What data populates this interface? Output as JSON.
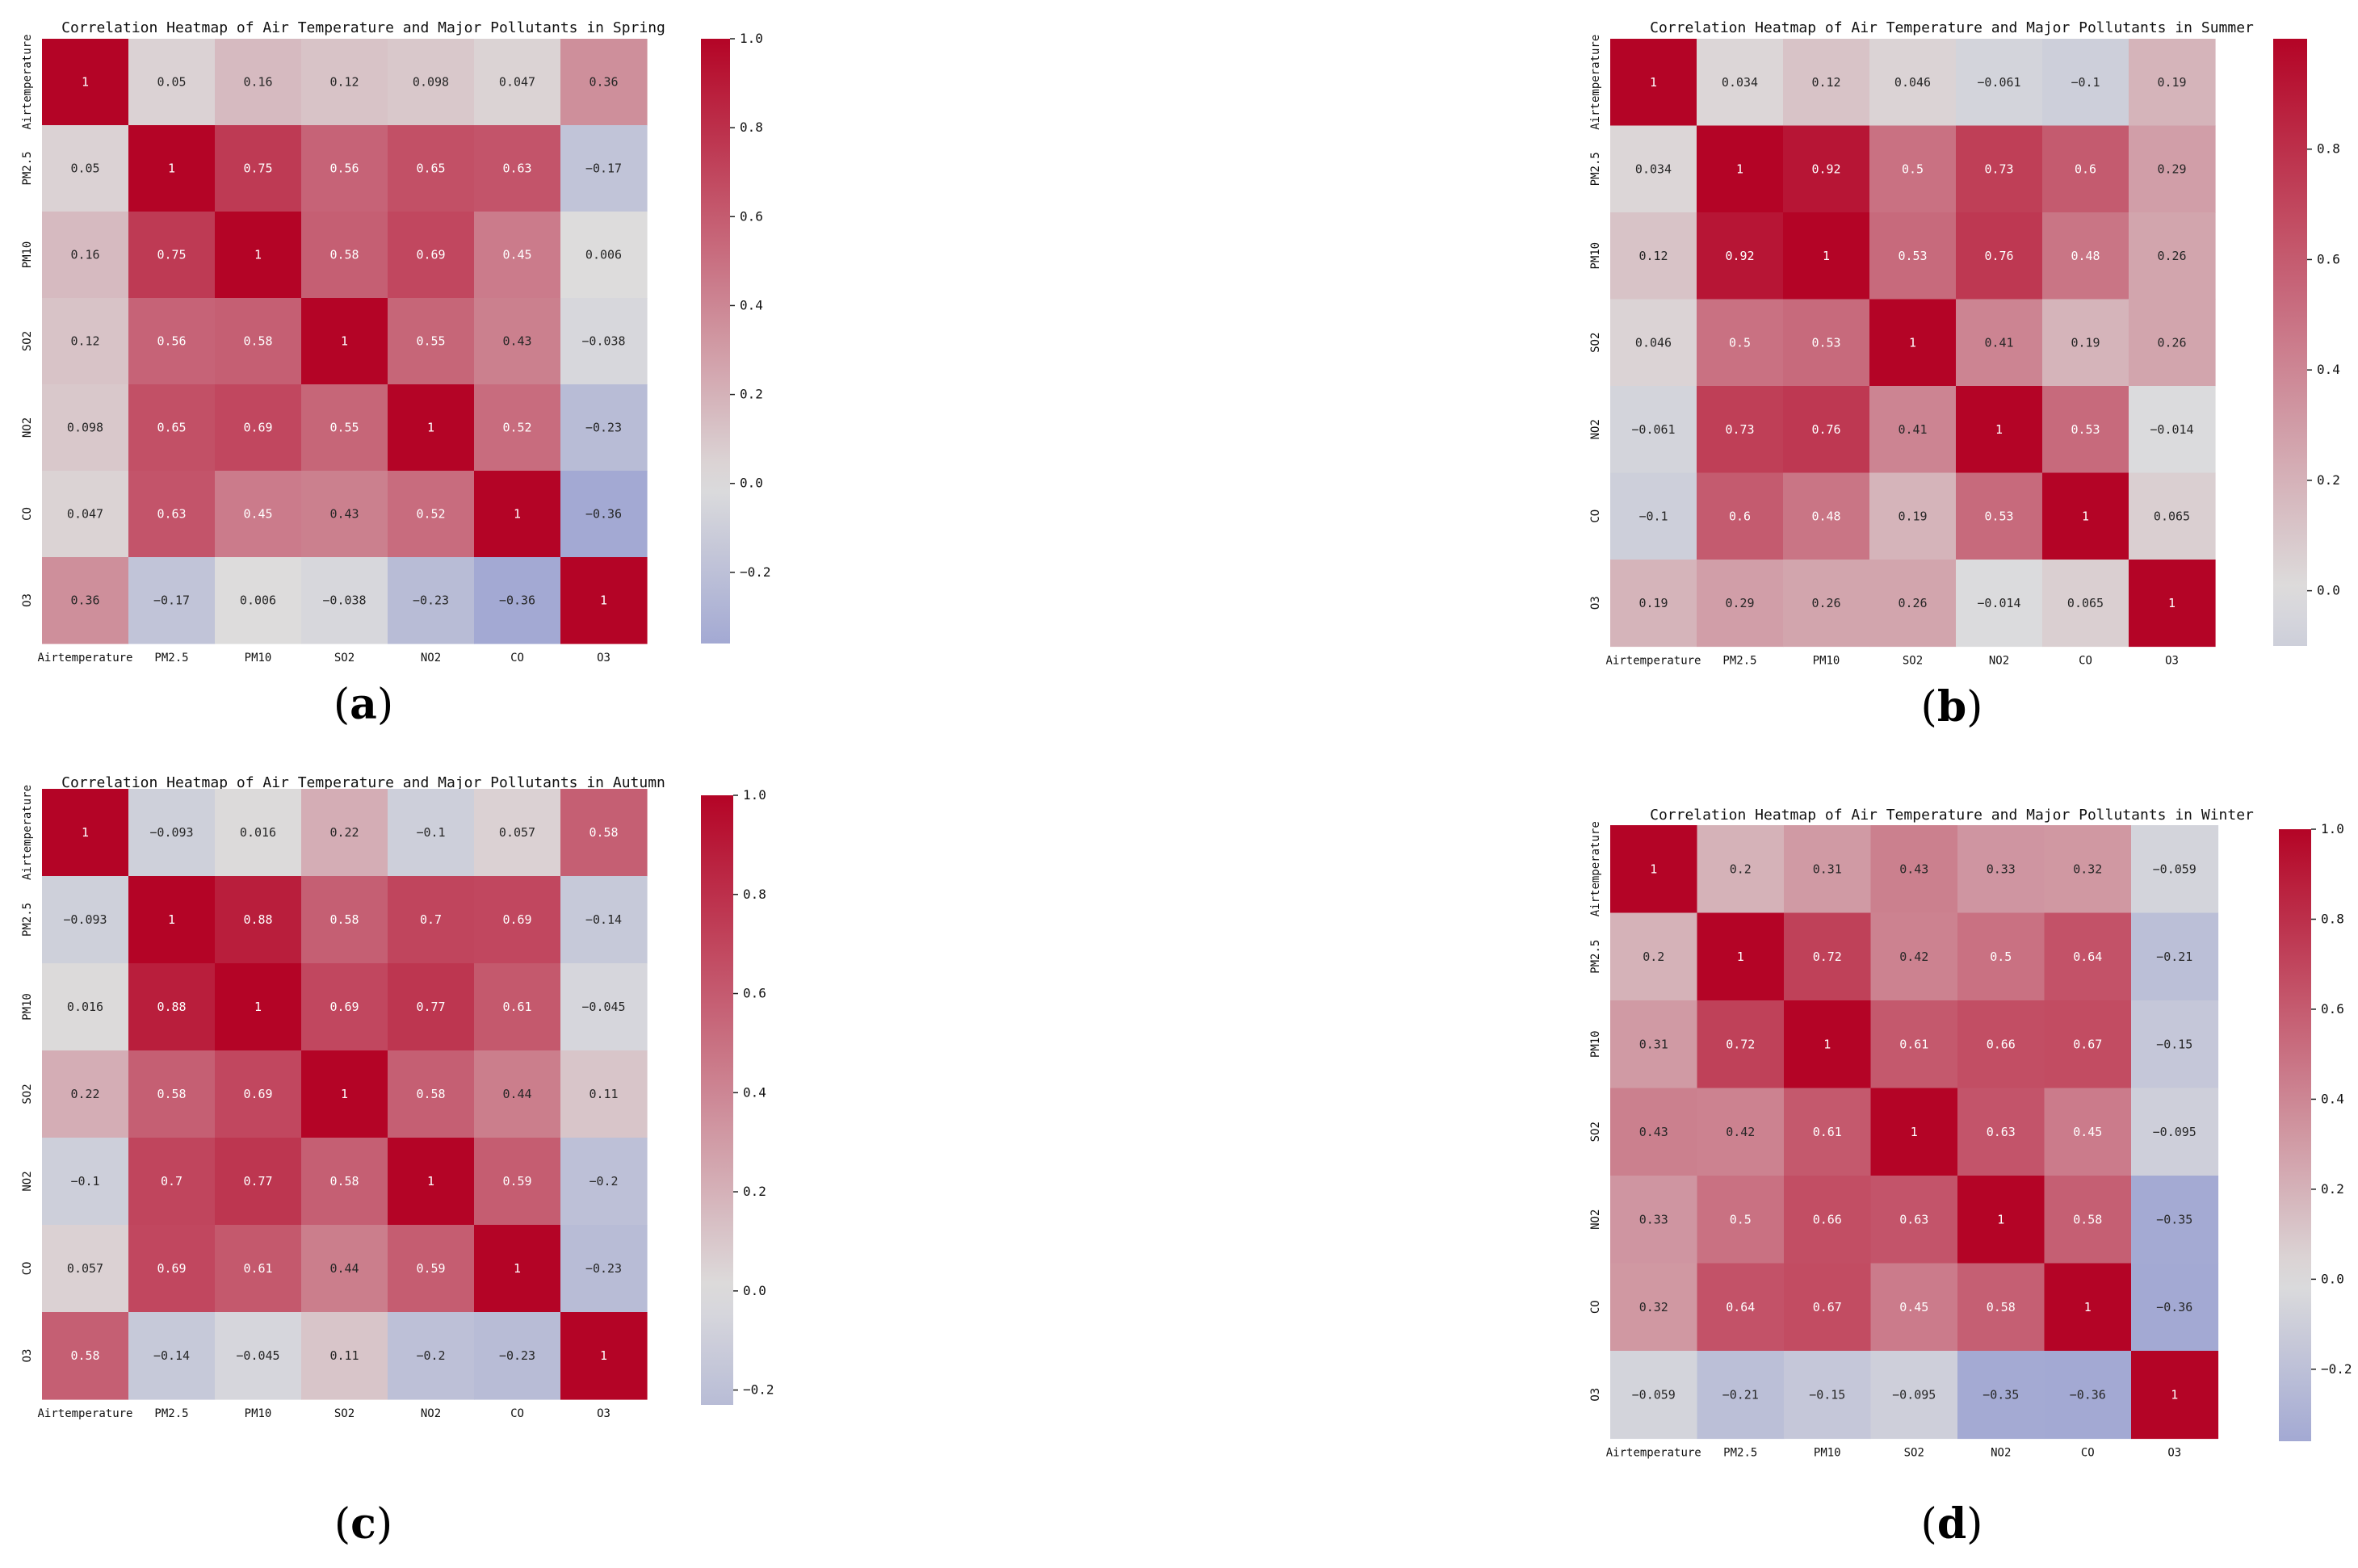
{
  "figure": {
    "letter_open": "(",
    "letter_close": ")"
  },
  "colormap": {
    "name": "coolwarm",
    "low": "#3b4cc0",
    "mid": "#dddddd",
    "high": "#b40426"
  },
  "chart_data": [
    {
      "type": "heatmap",
      "panel_letter": "a",
      "title": "Correlation Heatmap of Air Temperature and Major Pollutants in Spring",
      "x_labels": [
        "Airtemperature",
        "PM2.5",
        "PM10",
        "SO2",
        "NO2",
        "CO",
        "O3"
      ],
      "y_labels": [
        "Airtemperature",
        "PM2.5",
        "PM10",
        "SO2",
        "NO2",
        "CO",
        "O3"
      ],
      "matrix": [
        [
          1,
          0.05,
          0.16,
          0.12,
          0.098,
          0.047,
          0.36
        ],
        [
          0.05,
          1,
          0.75,
          0.56,
          0.65,
          0.63,
          -0.17
        ],
        [
          0.16,
          0.75,
          1,
          0.58,
          0.69,
          0.45,
          0.006
        ],
        [
          0.12,
          0.56,
          0.58,
          1,
          0.55,
          0.43,
          -0.038
        ],
        [
          0.098,
          0.65,
          0.69,
          0.55,
          1,
          0.52,
          -0.23
        ],
        [
          0.047,
          0.63,
          0.45,
          0.43,
          0.52,
          1,
          -0.36
        ],
        [
          0.36,
          -0.17,
          0.006,
          -0.038,
          -0.23,
          -0.36,
          1
        ]
      ],
      "vmin": -0.36,
      "vmax": 1.0,
      "colorbar_ticks": [
        1.0,
        0.8,
        0.6,
        0.4,
        0.2,
        0.0,
        -0.2
      ],
      "colorbar_tick_labels": [
        "1.0",
        "0.8",
        "0.6",
        "0.4",
        "0.2",
        "0.0",
        "−0.2"
      ]
    },
    {
      "type": "heatmap",
      "panel_letter": "b",
      "title": "Correlation Heatmap of Air Temperature and Major Pollutants in Summer",
      "x_labels": [
        "Airtemperature",
        "PM2.5",
        "PM10",
        "SO2",
        "NO2",
        "CO",
        "O3"
      ],
      "y_labels": [
        "Airtemperature",
        "PM2.5",
        "PM10",
        "SO2",
        "NO2",
        "CO",
        "O3"
      ],
      "matrix": [
        [
          1,
          0.034,
          0.12,
          0.046,
          -0.061,
          -0.1,
          0.19
        ],
        [
          0.034,
          1,
          0.92,
          0.5,
          0.73,
          0.6,
          0.29
        ],
        [
          0.12,
          0.92,
          1,
          0.53,
          0.76,
          0.48,
          0.26
        ],
        [
          0.046,
          0.5,
          0.53,
          1,
          0.41,
          0.19,
          0.26
        ],
        [
          -0.061,
          0.73,
          0.76,
          0.41,
          1,
          0.53,
          -0.014
        ],
        [
          -0.1,
          0.6,
          0.48,
          0.19,
          0.53,
          1,
          0.065
        ],
        [
          0.19,
          0.29,
          0.26,
          0.26,
          -0.014,
          0.065,
          1
        ]
      ],
      "vmin": -0.1,
      "vmax": 1.0,
      "colorbar_ticks": [
        0.8,
        0.6,
        0.4,
        0.2,
        0.0
      ],
      "colorbar_tick_labels": [
        "0.8",
        "0.6",
        "0.4",
        "0.2",
        "0.0"
      ]
    },
    {
      "type": "heatmap",
      "panel_letter": "c",
      "title": "Correlation Heatmap of Air Temperature and Major Pollutants in Autumn",
      "x_labels": [
        "Airtemperature",
        "PM2.5",
        "PM10",
        "SO2",
        "NO2",
        "CO",
        "O3"
      ],
      "y_labels": [
        "Airtemperature",
        "PM2.5",
        "PM10",
        "SO2",
        "NO2",
        "CO",
        "O3"
      ],
      "matrix": [
        [
          1,
          -0.093,
          0.016,
          0.22,
          -0.1,
          0.057,
          0.58
        ],
        [
          -0.093,
          1,
          0.88,
          0.58,
          0.7,
          0.69,
          -0.14
        ],
        [
          0.016,
          0.88,
          1,
          0.69,
          0.77,
          0.61,
          -0.045
        ],
        [
          0.22,
          0.58,
          0.69,
          1,
          0.58,
          0.44,
          0.11
        ],
        [
          -0.1,
          0.7,
          0.77,
          0.58,
          1,
          0.59,
          -0.2
        ],
        [
          0.057,
          0.69,
          0.61,
          0.44,
          0.59,
          1,
          -0.23
        ],
        [
          0.58,
          -0.14,
          -0.045,
          0.11,
          -0.2,
          -0.23,
          1
        ]
      ],
      "vmin": -0.23,
      "vmax": 1.0,
      "colorbar_ticks": [
        1.0,
        0.8,
        0.6,
        0.4,
        0.2,
        0.0,
        -0.2
      ],
      "colorbar_tick_labels": [
        "1.0",
        "0.8",
        "0.6",
        "0.4",
        "0.2",
        "0.0",
        "−0.2"
      ]
    },
    {
      "type": "heatmap",
      "panel_letter": "d",
      "title": "Correlation Heatmap of Air Temperature and Major Pollutants in Winter",
      "x_labels": [
        "Airtemperature",
        "PM2.5",
        "PM10",
        "SO2",
        "NO2",
        "CO",
        "O3"
      ],
      "y_labels": [
        "Airtemperature",
        "PM2.5",
        "PM10",
        "SO2",
        "NO2",
        "CO",
        "O3"
      ],
      "matrix": [
        [
          1,
          0.2,
          0.31,
          0.43,
          0.33,
          0.32,
          -0.059
        ],
        [
          0.2,
          1,
          0.72,
          0.42,
          0.5,
          0.64,
          -0.21
        ],
        [
          0.31,
          0.72,
          1,
          0.61,
          0.66,
          0.67,
          -0.15
        ],
        [
          0.43,
          0.42,
          0.61,
          1,
          0.63,
          0.45,
          -0.095
        ],
        [
          0.33,
          0.5,
          0.66,
          0.63,
          1,
          0.58,
          -0.35
        ],
        [
          0.32,
          0.64,
          0.67,
          0.45,
          0.58,
          1,
          -0.36
        ],
        [
          -0.059,
          -0.21,
          -0.15,
          -0.095,
          -0.35,
          -0.36,
          1
        ]
      ],
      "vmin": -0.36,
      "vmax": 1.0,
      "colorbar_ticks": [
        1.0,
        0.8,
        0.6,
        0.4,
        0.2,
        0.0,
        -0.2
      ],
      "colorbar_tick_labels": [
        "1.0",
        "0.8",
        "0.6",
        "0.4",
        "0.2",
        "0.0",
        "−0.2"
      ]
    }
  ]
}
